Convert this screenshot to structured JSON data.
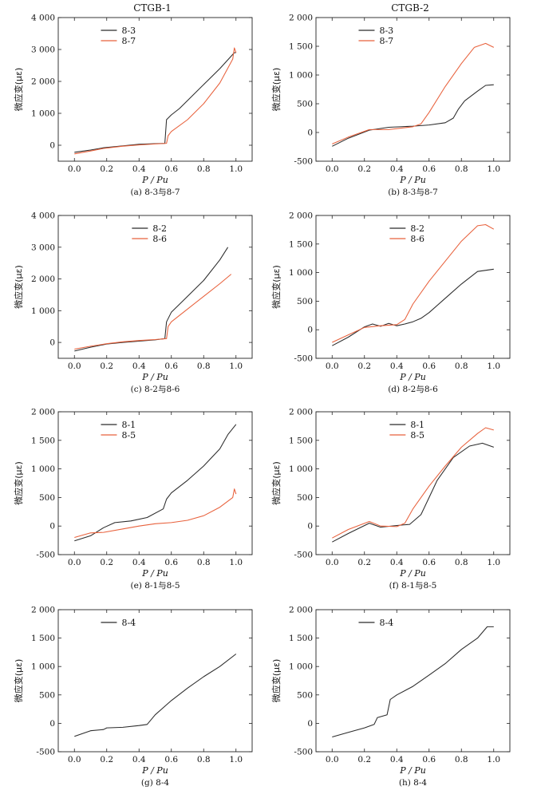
{
  "column_titles": [
    "CTGB-1",
    "CTGB-2"
  ],
  "colors": {
    "black_series": "#2b2b2b",
    "red_series": "#e8613c"
  },
  "chart_data": [
    {
      "type": "line",
      "caption": "(a) 8-3与8-7",
      "xlabel": "P / Pu",
      "ylabel": "微应变(με)",
      "xlim": [
        -0.1,
        1.1
      ],
      "ylim": [
        -500,
        4000
      ],
      "xticks": [
        "0.0",
        "0.2",
        "0.4",
        "0.6",
        "0.8",
        "1.0"
      ],
      "yticks": [
        "0",
        "1 000",
        "2 000",
        "3 000",
        "4 000"
      ],
      "legend_position": "top-left",
      "series": [
        {
          "name": "8-3",
          "color": "#2b2b2b",
          "x": [
            0.0,
            0.1,
            0.18,
            0.3,
            0.4,
            0.5,
            0.56,
            0.57,
            0.6,
            0.65,
            0.7,
            0.8,
            0.9,
            0.99,
            1.0
          ],
          "y": [
            -220,
            -150,
            -80,
            -20,
            30,
            50,
            60,
            800,
            950,
            1150,
            1400,
            1900,
            2400,
            2900,
            2900
          ]
        },
        {
          "name": "8-7",
          "color": "#e8613c",
          "x": [
            0.0,
            0.1,
            0.18,
            0.3,
            0.4,
            0.5,
            0.57,
            0.58,
            0.6,
            0.7,
            0.8,
            0.9,
            0.98,
            0.99,
            1.0
          ],
          "y": [
            -270,
            -180,
            -100,
            -30,
            10,
            40,
            60,
            300,
            430,
            800,
            1300,
            1950,
            2700,
            3050,
            2900
          ]
        }
      ]
    },
    {
      "type": "line",
      "caption": "(b) 8-3与8-7",
      "xlabel": "P / Pu",
      "ylabel": "微应变(με)",
      "xlim": [
        -0.1,
        1.1
      ],
      "ylim": [
        -500,
        2000
      ],
      "xticks": [
        "0.0",
        "0.2",
        "0.4",
        "0.6",
        "0.8",
        "1.0"
      ],
      "yticks": [
        "-500",
        "0",
        "500",
        "1 000",
        "1 500",
        "2 000"
      ],
      "legend_position": "top-left",
      "series": [
        {
          "name": "8-3",
          "color": "#2b2b2b",
          "x": [
            0.0,
            0.1,
            0.23,
            0.35,
            0.5,
            0.6,
            0.7,
            0.75,
            0.78,
            0.82,
            0.9,
            0.95,
            1.0
          ],
          "y": [
            -240,
            -100,
            40,
            90,
            110,
            130,
            170,
            250,
            400,
            550,
            720,
            820,
            830
          ]
        },
        {
          "name": "8-7",
          "color": "#e8613c",
          "x": [
            0.0,
            0.1,
            0.23,
            0.35,
            0.5,
            0.55,
            0.6,
            0.7,
            0.8,
            0.88,
            0.95,
            1.0
          ],
          "y": [
            -200,
            -80,
            50,
            50,
            100,
            150,
            350,
            800,
            1200,
            1480,
            1550,
            1480
          ]
        }
      ]
    },
    {
      "type": "line",
      "caption": "(c) 8-2与8-6",
      "xlabel": "P / Pu",
      "ylabel": "微应变(με)",
      "xlim": [
        -0.1,
        1.1
      ],
      "ylim": [
        -500,
        4000
      ],
      "xticks": [
        "0.0",
        "0.2",
        "0.4",
        "0.6",
        "0.8",
        "1.0"
      ],
      "yticks": [
        "0",
        "1 000",
        "2 000",
        "3 000",
        "4 000"
      ],
      "legend_position": "top-center",
      "series": [
        {
          "name": "8-2",
          "color": "#2b2b2b",
          "x": [
            0.0,
            0.1,
            0.2,
            0.3,
            0.4,
            0.5,
            0.56,
            0.57,
            0.6,
            0.7,
            0.8,
            0.9,
            0.95
          ],
          "y": [
            -270,
            -150,
            -50,
            0,
            40,
            80,
            120,
            650,
            950,
            1450,
            1950,
            2600,
            3000
          ]
        },
        {
          "name": "8-6",
          "color": "#e8613c",
          "x": [
            0.0,
            0.1,
            0.2,
            0.3,
            0.4,
            0.5,
            0.57,
            0.58,
            0.6,
            0.7,
            0.8,
            0.9,
            0.97
          ],
          "y": [
            -210,
            -120,
            -40,
            20,
            60,
            90,
            120,
            500,
            650,
            1050,
            1450,
            1850,
            2150
          ]
        }
      ]
    },
    {
      "type": "line",
      "caption": "(d) 8-2与8-6",
      "xlabel": "P / Pu",
      "ylabel": "微应变(με)",
      "xlim": [
        -0.1,
        1.1
      ],
      "ylim": [
        -500,
        2000
      ],
      "xticks": [
        "0.0",
        "0.2",
        "0.4",
        "0.6",
        "0.8",
        "1.0"
      ],
      "yticks": [
        "-500",
        "0",
        "500",
        "1 000",
        "1 500",
        "2 000"
      ],
      "legend_position": "top-center",
      "series": [
        {
          "name": "8-2",
          "color": "#2b2b2b",
          "x": [
            0.0,
            0.1,
            0.2,
            0.25,
            0.3,
            0.35,
            0.4,
            0.45,
            0.5,
            0.55,
            0.6,
            0.7,
            0.8,
            0.9,
            1.0
          ],
          "y": [
            -280,
            -130,
            50,
            100,
            60,
            110,
            70,
            100,
            140,
            200,
            300,
            550,
            800,
            1020,
            1060
          ]
        },
        {
          "name": "8-6",
          "color": "#e8613c",
          "x": [
            0.0,
            0.1,
            0.2,
            0.3,
            0.4,
            0.45,
            0.5,
            0.6,
            0.7,
            0.8,
            0.9,
            0.95,
            1.0
          ],
          "y": [
            -220,
            -90,
            40,
            70,
            90,
            180,
            450,
            850,
            1200,
            1550,
            1820,
            1840,
            1760
          ]
        }
      ]
    },
    {
      "type": "line",
      "caption": "(e) 8-1与8-5",
      "xlabel": "P / Pu",
      "ylabel": "微应变(με)",
      "xlim": [
        -0.1,
        1.1
      ],
      "ylim": [
        -500,
        2000
      ],
      "xticks": [
        "0.0",
        "0.2",
        "0.4",
        "0.6",
        "0.8",
        "1.0"
      ],
      "yticks": [
        "-500",
        "0",
        "500",
        "1 000",
        "1 500",
        "2 000"
      ],
      "legend_position": "top-left",
      "series": [
        {
          "name": "8-1",
          "color": "#2b2b2b",
          "x": [
            0.0,
            0.1,
            0.18,
            0.25,
            0.35,
            0.45,
            0.55,
            0.57,
            0.6,
            0.7,
            0.8,
            0.9,
            0.95,
            1.0
          ],
          "y": [
            -260,
            -170,
            -30,
            60,
            90,
            150,
            300,
            470,
            580,
            800,
            1050,
            1350,
            1600,
            1780
          ]
        },
        {
          "name": "8-5",
          "color": "#e8613c",
          "x": [
            0.0,
            0.1,
            0.18,
            0.3,
            0.4,
            0.5,
            0.6,
            0.7,
            0.8,
            0.9,
            0.98,
            0.99,
            1.0
          ],
          "y": [
            -200,
            -120,
            -110,
            -50,
            0,
            40,
            60,
            100,
            180,
            330,
            500,
            650,
            560
          ]
        }
      ]
    },
    {
      "type": "line",
      "caption": "(f) 8-1与8-5",
      "xlabel": "P / Pu",
      "ylabel": "微应变(με)",
      "xlim": [
        -0.1,
        1.1
      ],
      "ylim": [
        -500,
        2000
      ],
      "xticks": [
        "0.0",
        "0.2",
        "0.4",
        "0.6",
        "0.8",
        "1.0"
      ],
      "yticks": [
        "-500",
        "0",
        "500",
        "1 000",
        "1 500",
        "2 000"
      ],
      "legend_position": "top-center",
      "series": [
        {
          "name": "8-1",
          "color": "#2b2b2b",
          "x": [
            0.0,
            0.1,
            0.23,
            0.3,
            0.4,
            0.48,
            0.55,
            0.6,
            0.65,
            0.75,
            0.85,
            0.93,
            1.0
          ],
          "y": [
            -280,
            -130,
            50,
            -20,
            10,
            30,
            200,
            500,
            800,
            1200,
            1400,
            1450,
            1380
          ]
        },
        {
          "name": "8-5",
          "color": "#e8613c",
          "x": [
            0.0,
            0.1,
            0.23,
            0.3,
            0.4,
            0.45,
            0.5,
            0.6,
            0.7,
            0.8,
            0.9,
            0.95,
            1.0
          ],
          "y": [
            -210,
            -60,
            80,
            0,
            -10,
            50,
            300,
            700,
            1050,
            1380,
            1620,
            1720,
            1680
          ]
        }
      ]
    },
    {
      "type": "line",
      "caption": "(g) 8-4",
      "xlabel": "P / Pu",
      "ylabel": "微应变(με)",
      "xlim": [
        -0.1,
        1.1
      ],
      "ylim": [
        -500,
        2000
      ],
      "xticks": [
        "0.0",
        "0.2",
        "0.4",
        "0.6",
        "0.8",
        "1.0"
      ],
      "yticks": [
        "-500",
        "0",
        "500",
        "1 000",
        "1 500",
        "2 000"
      ],
      "legend_position": "top-left",
      "series": [
        {
          "name": "8-4",
          "color": "#2b2b2b",
          "x": [
            0.0,
            0.1,
            0.18,
            0.2,
            0.3,
            0.4,
            0.45,
            0.5,
            0.6,
            0.7,
            0.8,
            0.9,
            1.0
          ],
          "y": [
            -230,
            -130,
            -110,
            -80,
            -70,
            -40,
            -20,
            150,
            400,
            620,
            820,
            1000,
            1220
          ]
        }
      ]
    },
    {
      "type": "line",
      "caption": "(h) 8-4",
      "xlabel": "P / Pu",
      "ylabel": "微应变(με)",
      "xlim": [
        -0.1,
        1.1
      ],
      "ylim": [
        -500,
        2000
      ],
      "xticks": [
        "0.0",
        "0.2",
        "0.4",
        "0.6",
        "0.8",
        "1.0"
      ],
      "yticks": [
        "-500",
        "0",
        "500",
        "1 000",
        "1 500",
        "2 000"
      ],
      "legend_position": "top-left",
      "series": [
        {
          "name": "8-4",
          "color": "#2b2b2b",
          "x": [
            0.0,
            0.1,
            0.2,
            0.26,
            0.28,
            0.34,
            0.36,
            0.4,
            0.5,
            0.6,
            0.7,
            0.8,
            0.9,
            0.96,
            1.0
          ],
          "y": [
            -240,
            -160,
            -80,
            -20,
            100,
            150,
            420,
            500,
            650,
            850,
            1050,
            1300,
            1500,
            1700,
            1700
          ]
        }
      ]
    }
  ]
}
